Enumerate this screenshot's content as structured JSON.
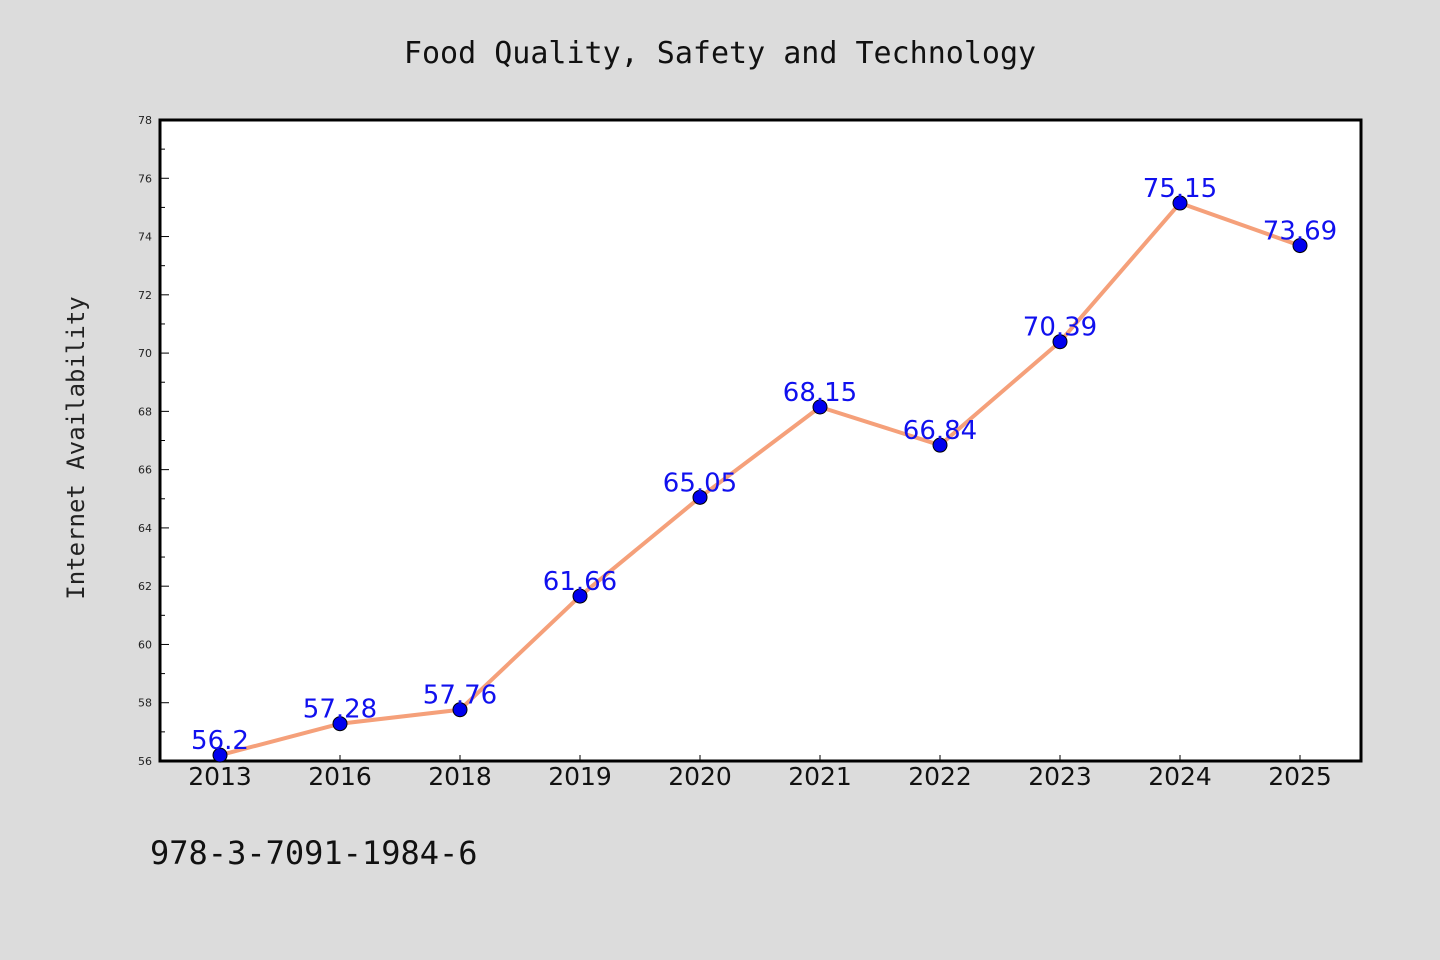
{
  "chart_data": {
    "type": "line",
    "title": "Food Quality, Safety and Technology",
    "xlabel": "",
    "ylabel": "Internet Availability",
    "categories": [
      "2013",
      "2016",
      "2018",
      "2019",
      "2020",
      "2021",
      "2022",
      "2023",
      "2024",
      "2025"
    ],
    "series": [
      {
        "values": [
          56.2,
          57.28,
          57.76,
          61.66,
          65.05,
          68.15,
          66.84,
          70.39,
          75.15,
          73.69
        ],
        "labels": [
          "56.2",
          "57.28",
          "57.76",
          "61.66",
          "65.05",
          "68.15",
          "66.84",
          "70.39",
          "75.15",
          "73.69"
        ],
        "line_color": "#f5a07a",
        "marker_color": "#0000ee"
      }
    ],
    "ylim": [
      56,
      78
    ],
    "yticks": [
      "56",
      "58",
      "60",
      "62",
      "64",
      "66",
      "68",
      "70",
      "72",
      "74",
      "76",
      "78"
    ],
    "grid": false,
    "legend": "none"
  },
  "footer": {
    "isbn": "978-3-7091-1984-6"
  }
}
